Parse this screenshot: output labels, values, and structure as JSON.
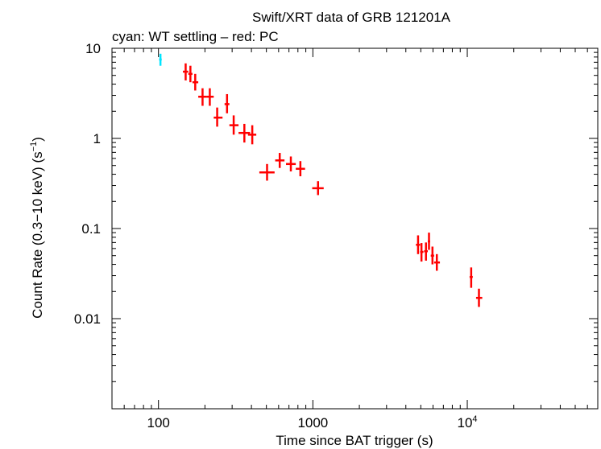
{
  "chart_data": {
    "type": "scatter",
    "title": "Swift/XRT data of GRB 121201A",
    "subtitle": "cyan: WT settling – red: PC",
    "xlabel": "Time since BAT trigger (s)",
    "ylabel": "Count Rate (0.3−10 keV) (s",
    "ylabel_sup": "−1",
    "ylabel_tail": ")",
    "xscale": "log",
    "yscale": "log",
    "xlim": [
      50,
      70000
    ],
    "ylim": [
      0.001,
      10
    ],
    "x_ticks": [
      {
        "value": 100,
        "label": "100"
      },
      {
        "value": 1000,
        "label": "1000"
      },
      {
        "value": 10000,
        "label": "10",
        "sup": "4"
      }
    ],
    "y_ticks": [
      {
        "value": 10,
        "label": "10"
      },
      {
        "value": 1,
        "label": "1"
      },
      {
        "value": 0.1,
        "label": "0.1"
      },
      {
        "value": 0.01,
        "label": "0.01"
      }
    ],
    "series": [
      {
        "name": "WT settling",
        "color": "#00e5ff",
        "points": [
          {
            "x": 103,
            "y": 7.5,
            "xlo": 101,
            "xhi": 105,
            "ylo": 6.4,
            "yhi": 8.7
          }
        ]
      },
      {
        "name": "PC",
        "color": "#ff0000",
        "points": [
          {
            "x": 150,
            "y": 5.5,
            "xlo": 144,
            "xhi": 156,
            "ylo": 4.4,
            "yhi": 6.8
          },
          {
            "x": 161,
            "y": 5.2,
            "xlo": 156,
            "xhi": 166,
            "ylo": 4.2,
            "yhi": 6.4
          },
          {
            "x": 173,
            "y": 4.2,
            "xlo": 166,
            "xhi": 181,
            "ylo": 3.4,
            "yhi": 5.2
          },
          {
            "x": 193,
            "y": 2.9,
            "xlo": 181,
            "xhi": 205,
            "ylo": 2.3,
            "yhi": 3.6
          },
          {
            "x": 215,
            "y": 2.9,
            "xlo": 205,
            "xhi": 228,
            "ylo": 2.3,
            "yhi": 3.6
          },
          {
            "x": 240,
            "y": 1.7,
            "xlo": 228,
            "xhi": 260,
            "ylo": 1.35,
            "yhi": 2.2
          },
          {
            "x": 278,
            "y": 2.4,
            "xlo": 268,
            "xhi": 288,
            "ylo": 1.9,
            "yhi": 3.1
          },
          {
            "x": 307,
            "y": 1.4,
            "xlo": 288,
            "xhi": 330,
            "ylo": 1.1,
            "yhi": 1.8
          },
          {
            "x": 360,
            "y": 1.15,
            "xlo": 330,
            "xhi": 392,
            "ylo": 0.9,
            "yhi": 1.45
          },
          {
            "x": 405,
            "y": 1.1,
            "xlo": 380,
            "xhi": 430,
            "ylo": 0.86,
            "yhi": 1.4
          },
          {
            "x": 505,
            "y": 0.42,
            "xlo": 450,
            "xhi": 565,
            "ylo": 0.34,
            "yhi": 0.52
          },
          {
            "x": 610,
            "y": 0.57,
            "xlo": 570,
            "xhi": 655,
            "ylo": 0.47,
            "yhi": 0.69
          },
          {
            "x": 720,
            "y": 0.52,
            "xlo": 670,
            "xhi": 775,
            "ylo": 0.43,
            "yhi": 0.63
          },
          {
            "x": 830,
            "y": 0.46,
            "xlo": 775,
            "xhi": 890,
            "ylo": 0.38,
            "yhi": 0.56
          },
          {
            "x": 1080,
            "y": 0.28,
            "xlo": 990,
            "xhi": 1175,
            "ylo": 0.235,
            "yhi": 0.335
          },
          {
            "x": 4800,
            "y": 0.066,
            "xlo": 4650,
            "xhi": 4950,
            "ylo": 0.052,
            "yhi": 0.084
          },
          {
            "x": 5050,
            "y": 0.055,
            "xlo": 4950,
            "xhi": 5200,
            "ylo": 0.043,
            "yhi": 0.069
          },
          {
            "x": 5400,
            "y": 0.056,
            "xlo": 5250,
            "xhi": 5550,
            "ylo": 0.044,
            "yhi": 0.07
          },
          {
            "x": 5650,
            "y": 0.072,
            "xlo": 5550,
            "xhi": 5750,
            "ylo": 0.058,
            "yhi": 0.09
          },
          {
            "x": 5950,
            "y": 0.05,
            "xlo": 5800,
            "xhi": 6100,
            "ylo": 0.04,
            "yhi": 0.063
          },
          {
            "x": 6350,
            "y": 0.042,
            "xlo": 6100,
            "xhi": 6650,
            "ylo": 0.034,
            "yhi": 0.052
          },
          {
            "x": 10600,
            "y": 0.029,
            "xlo": 10350,
            "xhi": 10850,
            "ylo": 0.022,
            "yhi": 0.037
          },
          {
            "x": 11900,
            "y": 0.017,
            "xlo": 11400,
            "xhi": 12500,
            "ylo": 0.0135,
            "yhi": 0.0215
          }
        ]
      }
    ]
  }
}
